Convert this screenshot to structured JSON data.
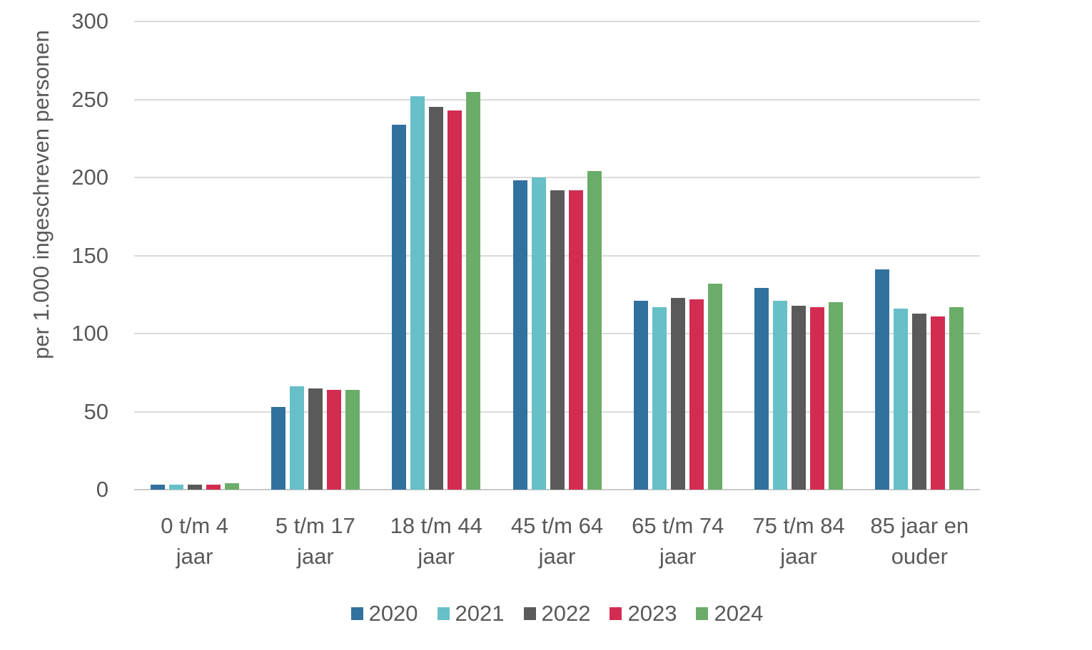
{
  "chart_data": {
    "type": "bar",
    "title": "",
    "xlabel": "",
    "ylabel": "per 1.000 ingeschreven personen",
    "ylim": [
      0,
      300
    ],
    "yticks": [
      0,
      50,
      100,
      150,
      200,
      250,
      300
    ],
    "grid": "horizontal gridlines on",
    "legend_position": "bottom center",
    "categories": [
      "0 t/m 4 jaar",
      "5 t/m 17 jaar",
      "18 t/m 44 jaar",
      "45 t/m 64 jaar",
      "65 t/m 74 jaar",
      "75 t/m 84 jaar",
      "85 jaar en ouder"
    ],
    "category_lines": [
      [
        "0 t/m 4",
        "jaar"
      ],
      [
        "5 t/m 17",
        "jaar"
      ],
      [
        "18 t/m 44",
        "jaar"
      ],
      [
        "45 t/m 64",
        "jaar"
      ],
      [
        "65 t/m 74",
        "jaar"
      ],
      [
        "75 t/m 84",
        "jaar"
      ],
      [
        "85 jaar en",
        "ouder"
      ]
    ],
    "series": [
      {
        "name": "2020",
        "color": "#31719E",
        "values": [
          3,
          53,
          234,
          198,
          121,
          129,
          141
        ]
      },
      {
        "name": "2021",
        "color": "#67BFC7",
        "values": [
          3,
          66,
          252,
          200,
          117,
          121,
          116
        ]
      },
      {
        "name": "2022",
        "color": "#5A5A5A",
        "values": [
          3,
          65,
          245,
          192,
          123,
          118,
          113
        ]
      },
      {
        "name": "2023",
        "color": "#D22D51",
        "values": [
          3,
          64,
          243,
          192,
          122,
          117,
          111
        ]
      },
      {
        "name": "2024",
        "color": "#6AAD69",
        "values": [
          4,
          64,
          255,
          204,
          132,
          120,
          117
        ]
      }
    ]
  },
  "colors": {
    "axis_text": "#595959",
    "gridline": "#DBDBDB",
    "baseline": "#C9C9C9",
    "background": "#FFFFFF"
  }
}
